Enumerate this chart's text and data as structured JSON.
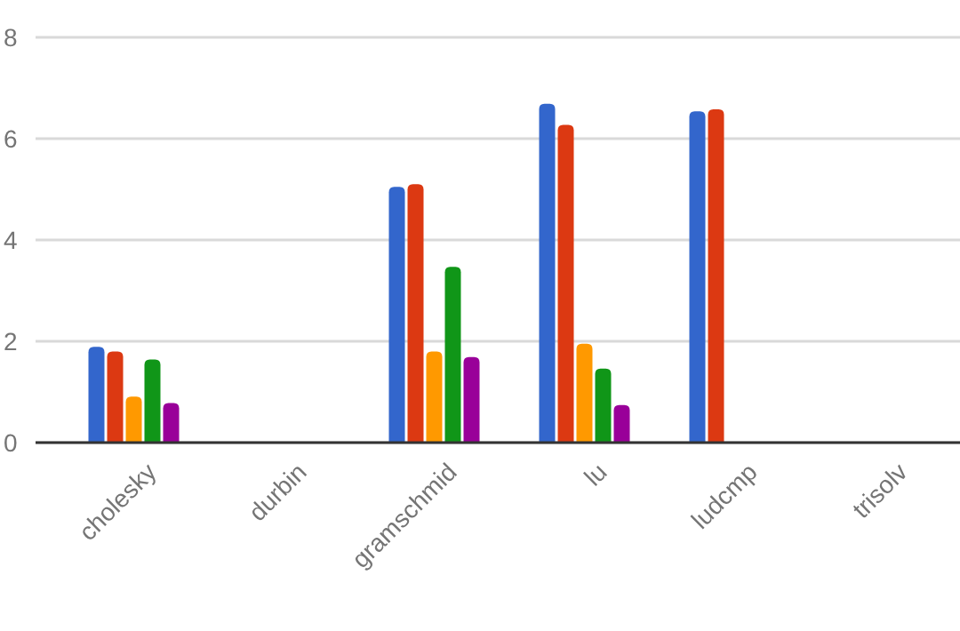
{
  "chart_data": {
    "type": "bar",
    "categories": [
      "cholesky",
      "durbin",
      "gramschmid",
      "lu",
      "ludcmp",
      "trisolv"
    ],
    "series": [
      {
        "color": "#3366cc",
        "values": [
          1.89,
          null,
          5.05,
          6.69,
          6.54,
          null
        ]
      },
      {
        "color": "#dc3912",
        "values": [
          1.8,
          null,
          5.1,
          6.27,
          6.58,
          null
        ]
      },
      {
        "color": "#ff9900",
        "values": [
          0.91,
          null,
          1.8,
          1.95,
          null,
          null
        ]
      },
      {
        "color": "#109618",
        "values": [
          1.64,
          null,
          3.47,
          1.46,
          null,
          null
        ]
      },
      {
        "color": "#990099",
        "values": [
          0.78,
          null,
          1.69,
          0.74,
          null,
          null
        ]
      }
    ],
    "ylim": [
      0,
      8
    ],
    "yticks": [
      0,
      2,
      4,
      6,
      8
    ],
    "grid": true
  }
}
